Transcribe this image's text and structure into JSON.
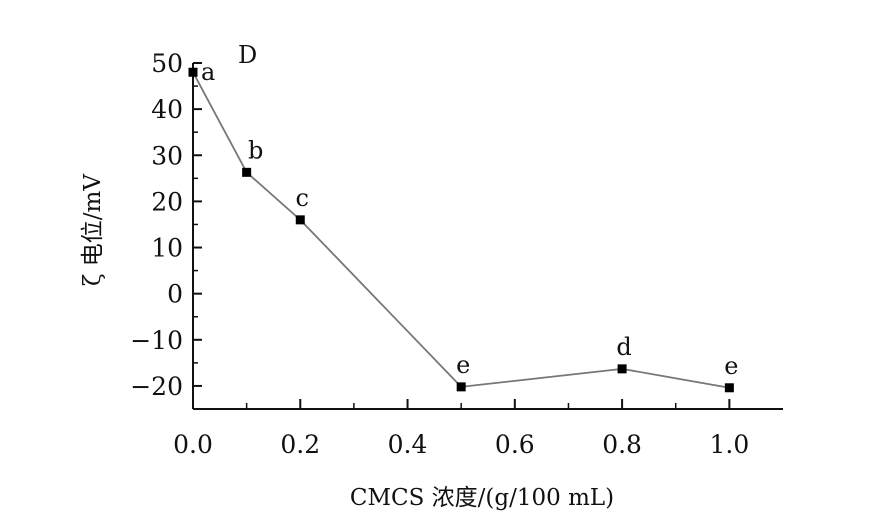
{
  "chart_data": {
    "type": "line",
    "panel_label": "D",
    "xlabel": "CMCS 浓度/(g/100 mL)",
    "ylabel": "ζ 电位/mV",
    "xlim": [
      0,
      1.1
    ],
    "ylim": [
      -25,
      50
    ],
    "x_ticks": [
      0.0,
      0.2,
      0.4,
      0.6,
      0.8,
      1.0
    ],
    "x_tick_labels": [
      "0.0",
      "0.2",
      "0.4",
      "0.6",
      "0.8",
      "1.0"
    ],
    "y_ticks": [
      50,
      40,
      30,
      20,
      10,
      0,
      -10,
      -20
    ],
    "y_tick_labels": [
      "50",
      "40",
      "30",
      "20",
      "10",
      "0",
      "−10",
      "−20"
    ],
    "grid": false,
    "legend": "none",
    "line_color": "#777777",
    "marker_color": "#000000",
    "series": [
      {
        "x": [
          0.0,
          0.1,
          0.2,
          0.5,
          0.8,
          1.0
        ],
        "y": [
          48.0,
          26.3,
          16.0,
          -20.2,
          -16.3,
          -20.4
        ],
        "labels": [
          "a",
          "b",
          "c",
          "e",
          "d",
          "e"
        ]
      }
    ]
  }
}
